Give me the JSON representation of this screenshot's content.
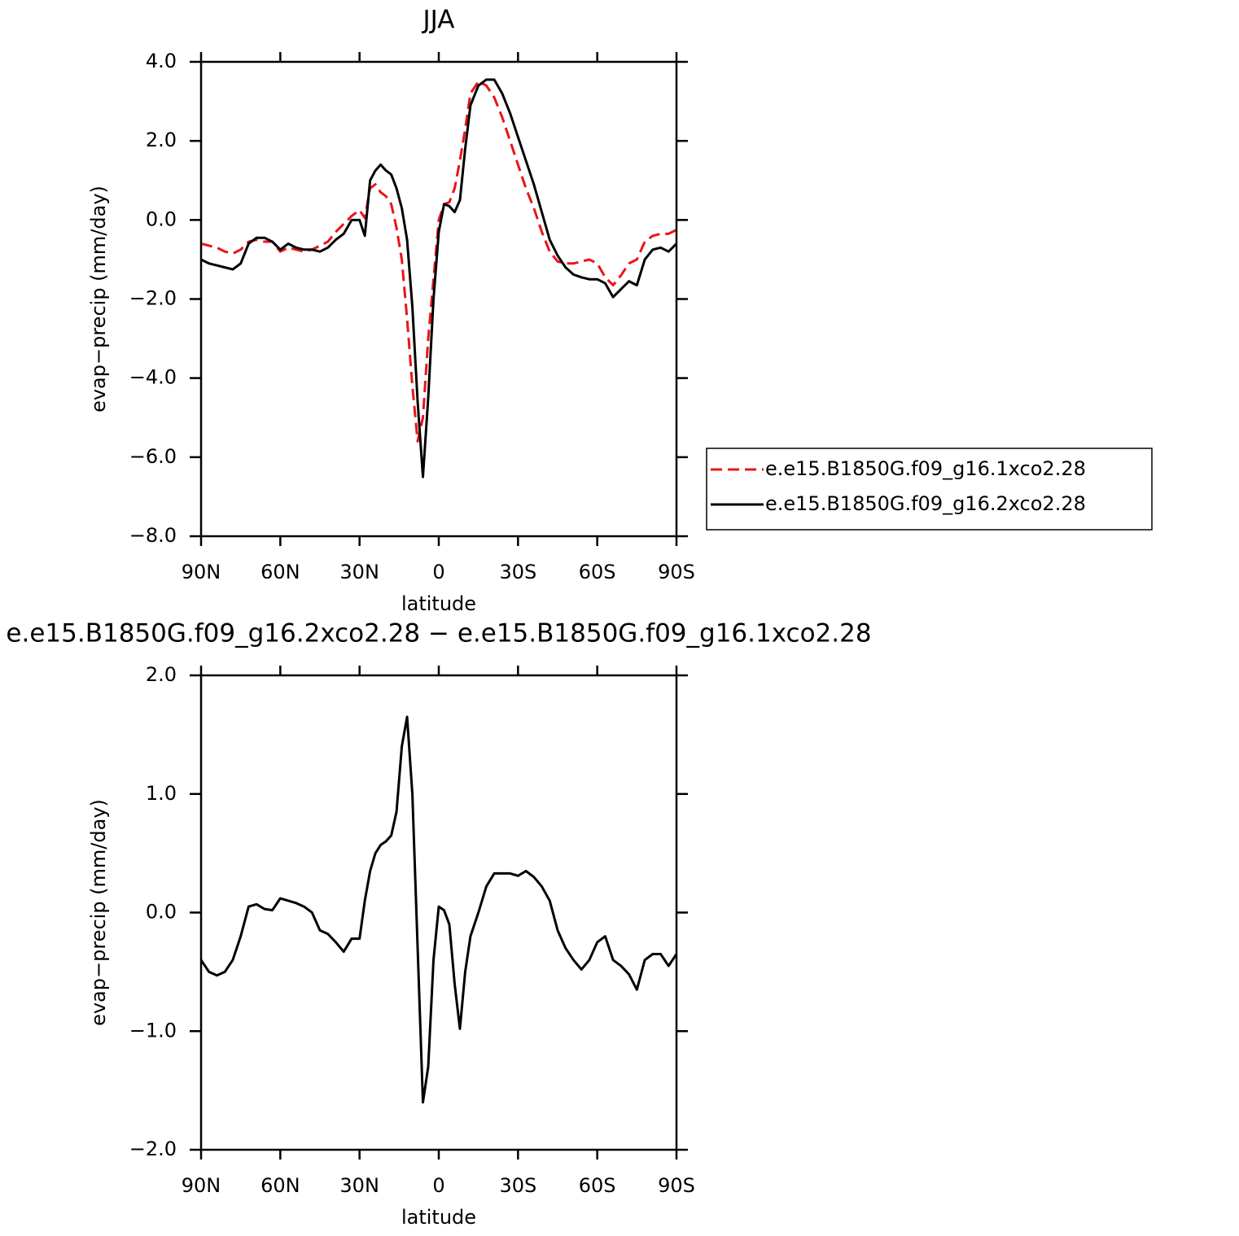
{
  "chart_data": [
    {
      "type": "line",
      "title": "JJA",
      "xlabel": "latitude",
      "ylabel": "evap−precip (mm/day)",
      "x": [
        90,
        87,
        84,
        81,
        78,
        75,
        72,
        69,
        66,
        63,
        60,
        57,
        54,
        51,
        48,
        45,
        42,
        39,
        36,
        33,
        30,
        28,
        26,
        24,
        22,
        20,
        18,
        16,
        14,
        12,
        10,
        8,
        6,
        4,
        2,
        0,
        -2,
        -4,
        -6,
        -8,
        -10,
        -12,
        -15,
        -18,
        -21,
        -24,
        -27,
        -30,
        -33,
        -36,
        -39,
        -42,
        -45,
        -48,
        -51,
        -54,
        -57,
        -60,
        -63,
        -66,
        -69,
        -72,
        -75,
        -78,
        -81,
        -84,
        -87,
        -90
      ],
      "series": [
        {
          "name": "e.e15.B1850G.f09_g16.1xco2.28",
          "color": "#e8141a",
          "dashed": true,
          "values": [
            -0.6,
            -0.65,
            -0.7,
            -0.8,
            -0.85,
            -0.75,
            -0.55,
            -0.5,
            -0.55,
            -0.55,
            -0.8,
            -0.7,
            -0.75,
            -0.8,
            -0.75,
            -0.65,
            -0.55,
            -0.3,
            -0.1,
            0.1,
            0.25,
            0.05,
            0.8,
            0.9,
            0.7,
            0.6,
            0.4,
            -0.2,
            -1.0,
            -2.5,
            -4.2,
            -5.6,
            -5.0,
            -3.0,
            -1.5,
            0.0,
            0.4,
            0.45,
            0.8,
            1.5,
            2.3,
            3.2,
            3.5,
            3.4,
            3.1,
            2.6,
            2.0,
            1.4,
            0.8,
            0.3,
            -0.3,
            -0.8,
            -1.05,
            -1.1,
            -1.1,
            -1.05,
            -1.0,
            -1.1,
            -1.45,
            -1.65,
            -1.4,
            -1.1,
            -1.0,
            -0.55,
            -0.4,
            -0.35,
            -0.35,
            -0.25
          ]
        },
        {
          "name": "e.e15.B1850G.f09_g16.2xco2.28",
          "color": "#000000",
          "dashed": false,
          "values": [
            -1.0,
            -1.1,
            -1.15,
            -1.2,
            -1.25,
            -1.1,
            -0.6,
            -0.45,
            -0.45,
            -0.55,
            -0.75,
            -0.6,
            -0.7,
            -0.75,
            -0.75,
            -0.8,
            -0.7,
            -0.5,
            -0.35,
            0.0,
            0.0,
            -0.4,
            1.0,
            1.25,
            1.4,
            1.25,
            1.15,
            0.8,
            0.3,
            -0.5,
            -2.2,
            -4.6,
            -6.5,
            -4.5,
            -2.0,
            -0.3,
            0.4,
            0.35,
            0.2,
            0.5,
            1.8,
            2.9,
            3.4,
            3.55,
            3.55,
            3.2,
            2.7,
            2.1,
            1.5,
            0.9,
            0.2,
            -0.5,
            -0.9,
            -1.2,
            -1.38,
            -1.45,
            -1.5,
            -1.5,
            -1.6,
            -1.95,
            -1.75,
            -1.55,
            -1.65,
            -1.0,
            -0.75,
            -0.7,
            -0.8,
            -0.6
          ]
        }
      ],
      "xlim": [
        90,
        -90
      ],
      "xticks": [
        {
          "value": 90,
          "label": "90N"
        },
        {
          "value": 60,
          "label": "60N"
        },
        {
          "value": 30,
          "label": "30N"
        },
        0,
        {
          "value": -30,
          "label": "30S"
        },
        {
          "value": -60,
          "label": "60S"
        },
        {
          "value": -90,
          "label": "90S"
        }
      ],
      "ylim": [
        -8,
        4
      ],
      "yticks": [
        {
          "value": -8,
          "label": "−8.0"
        },
        {
          "value": -6,
          "label": "−6.0"
        },
        {
          "value": -4,
          "label": "−4.0"
        },
        {
          "value": -2,
          "label": "−2.0"
        },
        {
          "value": 0,
          "label": "0.0"
        },
        {
          "value": 2,
          "label": "2.0"
        },
        {
          "value": 4,
          "label": "4.0"
        }
      ]
    },
    {
      "type": "line",
      "title": "e.e15.B1850G.f09_g16.2xco2.28 − e.e15.B1850G.f09_g16.1xco2.28",
      "xlabel": "latitude",
      "ylabel": "evap−precip (mm/day)",
      "x": [
        90,
        87,
        84,
        81,
        78,
        75,
        72,
        69,
        66,
        63,
        60,
        57,
        54,
        51,
        48,
        45,
        42,
        39,
        36,
        33,
        30,
        28,
        26,
        24,
        22,
        20,
        18,
        16,
        14,
        12,
        10,
        8,
        6,
        4,
        2,
        0,
        -2,
        -4,
        -6,
        -8,
        -10,
        -12,
        -15,
        -18,
        -21,
        -24,
        -27,
        -30,
        -33,
        -36,
        -39,
        -42,
        -45,
        -48,
        -51,
        -54,
        -57,
        -60,
        -63,
        -66,
        -69,
        -72,
        -75,
        -78,
        -81,
        -84,
        -87,
        -90
      ],
      "values": [
        -0.4,
        -0.5,
        -0.53,
        -0.5,
        -0.4,
        -0.2,
        0.05,
        0.07,
        0.03,
        0.02,
        0.12,
        0.1,
        0.08,
        0.05,
        0.0,
        -0.15,
        -0.18,
        -0.25,
        -0.33,
        -0.22,
        -0.22,
        0.1,
        0.35,
        0.5,
        0.57,
        0.6,
        0.65,
        0.85,
        1.4,
        1.65,
        1.0,
        -0.3,
        -1.6,
        -1.3,
        -0.4,
        0.05,
        0.02,
        -0.1,
        -0.6,
        -0.98,
        -0.5,
        -0.2,
        0.0,
        0.22,
        0.33,
        0.33,
        0.33,
        0.31,
        0.35,
        0.3,
        0.22,
        0.1,
        -0.15,
        -0.3,
        -0.4,
        -0.48,
        -0.4,
        -0.25,
        -0.2,
        -0.4,
        -0.45,
        -0.52,
        -0.65,
        -0.4,
        -0.35,
        -0.35,
        -0.45,
        -0.35
      ],
      "color": "#000000",
      "xlim": [
        90,
        -90
      ],
      "xticks": [
        {
          "value": 90,
          "label": "90N"
        },
        {
          "value": 60,
          "label": "60N"
        },
        {
          "value": 30,
          "label": "30N"
        },
        0,
        {
          "value": -30,
          "label": "30S"
        },
        {
          "value": -60,
          "label": "60S"
        },
        {
          "value": -90,
          "label": "90S"
        }
      ],
      "ylim": [
        -2,
        2
      ],
      "yticks": [
        {
          "value": -2,
          "label": "−2.0"
        },
        {
          "value": -1,
          "label": "−1.0"
        },
        {
          "value": 0,
          "label": "0.0"
        },
        {
          "value": 1,
          "label": "1.0"
        },
        {
          "value": 2,
          "label": "2.0"
        }
      ]
    }
  ]
}
